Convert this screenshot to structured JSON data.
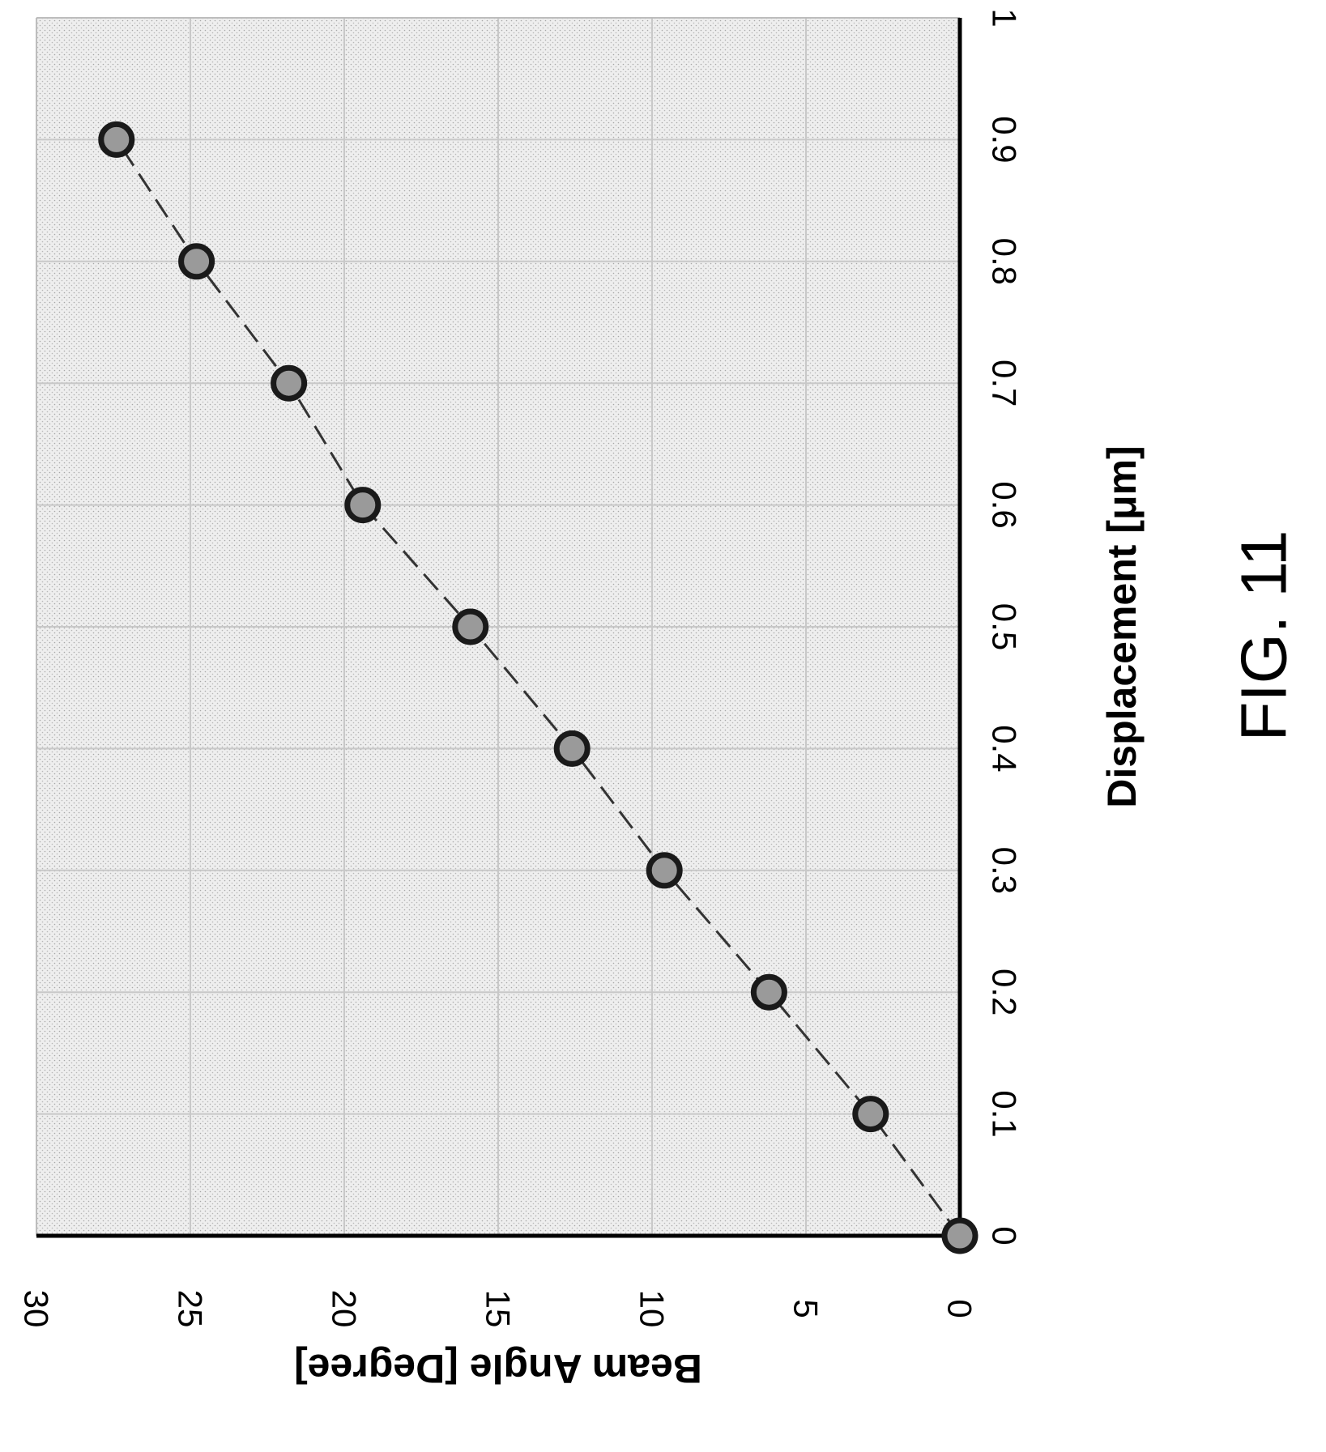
{
  "chart_data": {
    "type": "scatter",
    "title": "",
    "xlabel": "Displacement [μm]",
    "ylabel": "Beam Angle [Degree]",
    "xlim": [
      0,
      1
    ],
    "ylim": [
      0,
      30
    ],
    "x_ticks": [
      "0",
      "0.1",
      "0.2",
      "0.3",
      "0.4",
      "0.5",
      "0.6",
      "0.7",
      "0.8",
      "0.9",
      "1"
    ],
    "y_ticks": [
      "0",
      "5",
      "10",
      "15",
      "20",
      "25",
      "30"
    ],
    "grid": true,
    "orientation": "rotated 90 degrees counter-clockwise",
    "series": [
      {
        "x": [
          0,
          0.1,
          0.2,
          0.3,
          0.4,
          0.5,
          0.6,
          0.7,
          0.8,
          0.9
        ],
        "y": [
          0,
          2.9,
          6.2,
          9.6,
          12.6,
          15.9,
          19.4,
          21.8,
          24.8,
          27.4
        ],
        "marker": "circle",
        "trendline": "dashed linear"
      }
    ],
    "colors": {
      "marker_fill": "#9a9a9a",
      "marker_edge": "#1a1a1a",
      "plot_background": "#ececec",
      "grid": "#c8c8c8"
    }
  },
  "figure": {
    "label": "FIG. 11"
  }
}
